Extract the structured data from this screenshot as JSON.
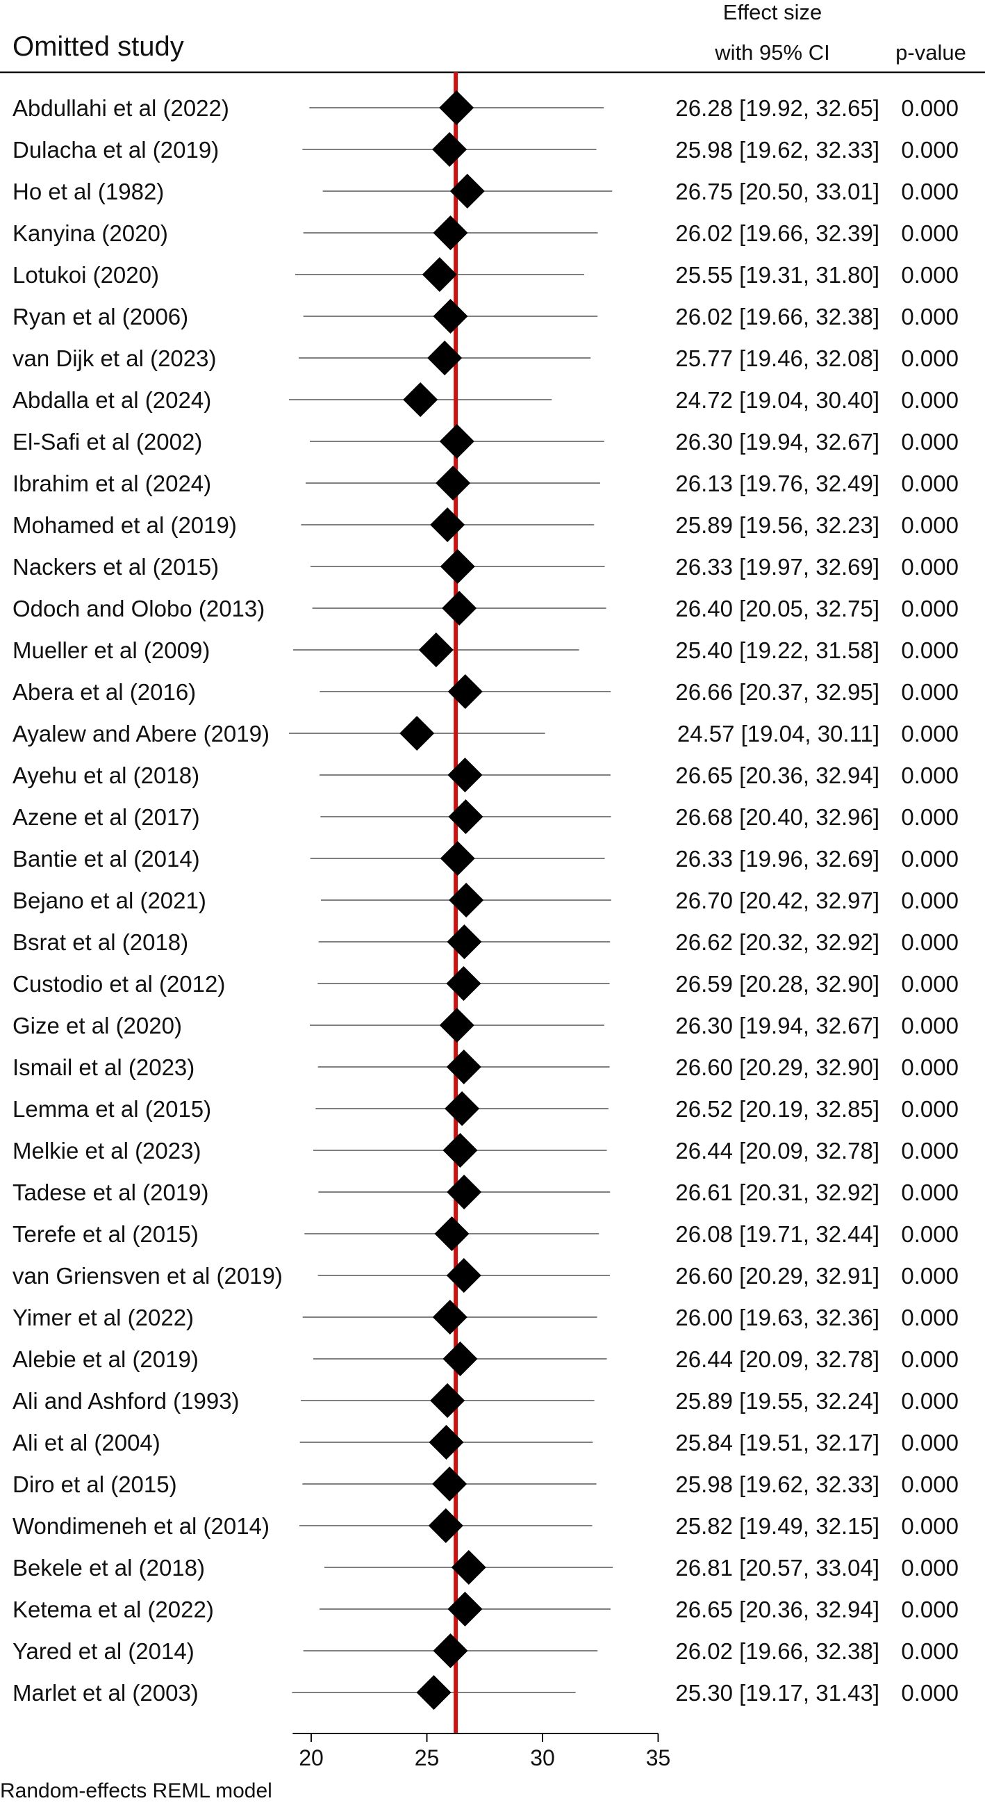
{
  "chart_data": {
    "type": "forest",
    "header": {
      "study": "Omitted study",
      "effect_line1": "Effect size",
      "effect_line2": "with 95% CI",
      "pvalue": "p-value"
    },
    "footnote": "Random-effects REML model",
    "x_ticks": [
      "20",
      "25",
      "30",
      "35"
    ],
    "xlim": [
      19.2,
      35
    ],
    "overall_effect": 26.25,
    "reference_line_color": "#cc1111",
    "studies": [
      {
        "name": "Abdullahi et al (2022)",
        "es": 26.28,
        "lo": 19.92,
        "hi": 32.65,
        "ci_text": "26.28 [19.92, 32.65]",
        "p": "0.000"
      },
      {
        "name": "Dulacha et al (2019)",
        "es": 25.98,
        "lo": 19.62,
        "hi": 32.33,
        "ci_text": "25.98 [19.62, 32.33]",
        "p": "0.000"
      },
      {
        "name": "Ho et al (1982)",
        "es": 26.75,
        "lo": 20.5,
        "hi": 33.01,
        "ci_text": "26.75 [20.50, 33.01]",
        "p": "0.000"
      },
      {
        "name": "Kanyina (2020)",
        "es": 26.02,
        "lo": 19.66,
        "hi": 32.39,
        "ci_text": "26.02 [19.66, 32.39]",
        "p": "0.000"
      },
      {
        "name": "Lotukoi (2020)",
        "es": 25.55,
        "lo": 19.31,
        "hi": 31.8,
        "ci_text": "25.55 [19.31, 31.80]",
        "p": "0.000"
      },
      {
        "name": "Ryan et al (2006)",
        "es": 26.02,
        "lo": 19.66,
        "hi": 32.38,
        "ci_text": "26.02 [19.66, 32.38]",
        "p": "0.000"
      },
      {
        "name": "van Dijk et al (2023)",
        "es": 25.77,
        "lo": 19.46,
        "hi": 32.08,
        "ci_text": "25.77 [19.46, 32.08]",
        "p": "0.000"
      },
      {
        "name": "Abdalla et al (2024)",
        "es": 24.72,
        "lo": 19.04,
        "hi": 30.4,
        "ci_text": "24.72 [19.04, 30.40]",
        "p": "0.000"
      },
      {
        "name": "El-Safi et al (2002)",
        "es": 26.3,
        "lo": 19.94,
        "hi": 32.67,
        "ci_text": "26.30 [19.94, 32.67]",
        "p": "0.000"
      },
      {
        "name": "Ibrahim et al (2024)",
        "es": 26.13,
        "lo": 19.76,
        "hi": 32.49,
        "ci_text": "26.13 [19.76, 32.49]",
        "p": "0.000"
      },
      {
        "name": "Mohamed et al (2019)",
        "es": 25.89,
        "lo": 19.56,
        "hi": 32.23,
        "ci_text": "25.89 [19.56, 32.23]",
        "p": "0.000"
      },
      {
        "name": "Nackers et al (2015)",
        "es": 26.33,
        "lo": 19.97,
        "hi": 32.69,
        "ci_text": "26.33 [19.97, 32.69]",
        "p": "0.000"
      },
      {
        "name": "Odoch and Olobo (2013)",
        "es": 26.4,
        "lo": 20.05,
        "hi": 32.75,
        "ci_text": "26.40 [20.05, 32.75]",
        "p": "0.000"
      },
      {
        "name": "Mueller et al (2009)",
        "es": 25.4,
        "lo": 19.22,
        "hi": 31.58,
        "ci_text": "25.40 [19.22, 31.58]",
        "p": "0.000"
      },
      {
        "name": "Abera et al (2016)",
        "es": 26.66,
        "lo": 20.37,
        "hi": 32.95,
        "ci_text": "26.66 [20.37, 32.95]",
        "p": "0.000"
      },
      {
        "name": "Ayalew and Abere (2019)",
        "es": 24.57,
        "lo": 19.04,
        "hi": 30.11,
        "ci_text": "24.57 [19.04, 30.11]",
        "p": "0.000"
      },
      {
        "name": "Ayehu et al (2018)",
        "es": 26.65,
        "lo": 20.36,
        "hi": 32.94,
        "ci_text": "26.65 [20.36, 32.94]",
        "p": "0.000"
      },
      {
        "name": "Azene et al (2017)",
        "es": 26.68,
        "lo": 20.4,
        "hi": 32.96,
        "ci_text": "26.68 [20.40, 32.96]",
        "p": "0.000"
      },
      {
        "name": "Bantie et al (2014)",
        "es": 26.33,
        "lo": 19.96,
        "hi": 32.69,
        "ci_text": "26.33 [19.96, 32.69]",
        "p": "0.000"
      },
      {
        "name": "Bejano et al (2021)",
        "es": 26.7,
        "lo": 20.42,
        "hi": 32.97,
        "ci_text": "26.70 [20.42, 32.97]",
        "p": "0.000"
      },
      {
        "name": "Bsrat et al (2018)",
        "es": 26.62,
        "lo": 20.32,
        "hi": 32.92,
        "ci_text": "26.62 [20.32, 32.92]",
        "p": "0.000"
      },
      {
        "name": "Custodio et al (2012)",
        "es": 26.59,
        "lo": 20.28,
        "hi": 32.9,
        "ci_text": "26.59 [20.28, 32.90]",
        "p": "0.000"
      },
      {
        "name": "Gize et al (2020)",
        "es": 26.3,
        "lo": 19.94,
        "hi": 32.67,
        "ci_text": "26.30 [19.94, 32.67]",
        "p": "0.000"
      },
      {
        "name": "Ismail et al (2023)",
        "es": 26.6,
        "lo": 20.29,
        "hi": 32.9,
        "ci_text": "26.60 [20.29, 32.90]",
        "p": "0.000"
      },
      {
        "name": "Lemma et al (2015)",
        "es": 26.52,
        "lo": 20.19,
        "hi": 32.85,
        "ci_text": "26.52 [20.19, 32.85]",
        "p": "0.000"
      },
      {
        "name": "Melkie et al (2023)",
        "es": 26.44,
        "lo": 20.09,
        "hi": 32.78,
        "ci_text": "26.44 [20.09, 32.78]",
        "p": "0.000"
      },
      {
        "name": "Tadese et al (2019)",
        "es": 26.61,
        "lo": 20.31,
        "hi": 32.92,
        "ci_text": "26.61 [20.31, 32.92]",
        "p": "0.000"
      },
      {
        "name": "Terefe et al (2015)",
        "es": 26.08,
        "lo": 19.71,
        "hi": 32.44,
        "ci_text": "26.08 [19.71, 32.44]",
        "p": "0.000"
      },
      {
        "name": "van Griensven et al (2019)",
        "es": 26.6,
        "lo": 20.29,
        "hi": 32.91,
        "ci_text": "26.60 [20.29, 32.91]",
        "p": "0.000"
      },
      {
        "name": "Yimer et al (2022)",
        "es": 26.0,
        "lo": 19.63,
        "hi": 32.36,
        "ci_text": "26.00 [19.63, 32.36]",
        "p": "0.000"
      },
      {
        "name": "Alebie et al (2019)",
        "es": 26.44,
        "lo": 20.09,
        "hi": 32.78,
        "ci_text": "26.44 [20.09, 32.78]",
        "p": "0.000"
      },
      {
        "name": "Ali and Ashford (1993)",
        "es": 25.89,
        "lo": 19.55,
        "hi": 32.24,
        "ci_text": "25.89 [19.55, 32.24]",
        "p": "0.000"
      },
      {
        "name": "Ali et al (2004)",
        "es": 25.84,
        "lo": 19.51,
        "hi": 32.17,
        "ci_text": "25.84 [19.51, 32.17]",
        "p": "0.000"
      },
      {
        "name": "Diro et al (2015)",
        "es": 25.98,
        "lo": 19.62,
        "hi": 32.33,
        "ci_text": "25.98 [19.62, 32.33]",
        "p": "0.000"
      },
      {
        "name": "Wondimeneh et al (2014)",
        "es": 25.82,
        "lo": 19.49,
        "hi": 32.15,
        "ci_text": "25.82 [19.49, 32.15]",
        "p": "0.000"
      },
      {
        "name": "Bekele et al (2018)",
        "es": 26.81,
        "lo": 20.57,
        "hi": 33.04,
        "ci_text": "26.81 [20.57, 33.04]",
        "p": "0.000"
      },
      {
        "name": "Ketema et al (2022)",
        "es": 26.65,
        "lo": 20.36,
        "hi": 32.94,
        "ci_text": "26.65 [20.36, 32.94]",
        "p": "0.000"
      },
      {
        "name": "Yared et al (2014)",
        "es": 26.02,
        "lo": 19.66,
        "hi": 32.38,
        "ci_text": "26.02 [19.66, 32.38]",
        "p": "0.000"
      },
      {
        "name": "Marlet et al (2003)",
        "es": 25.3,
        "lo": 19.17,
        "hi": 31.43,
        "ci_text": "25.30 [19.17, 31.43]",
        "p": "0.000"
      }
    ]
  }
}
